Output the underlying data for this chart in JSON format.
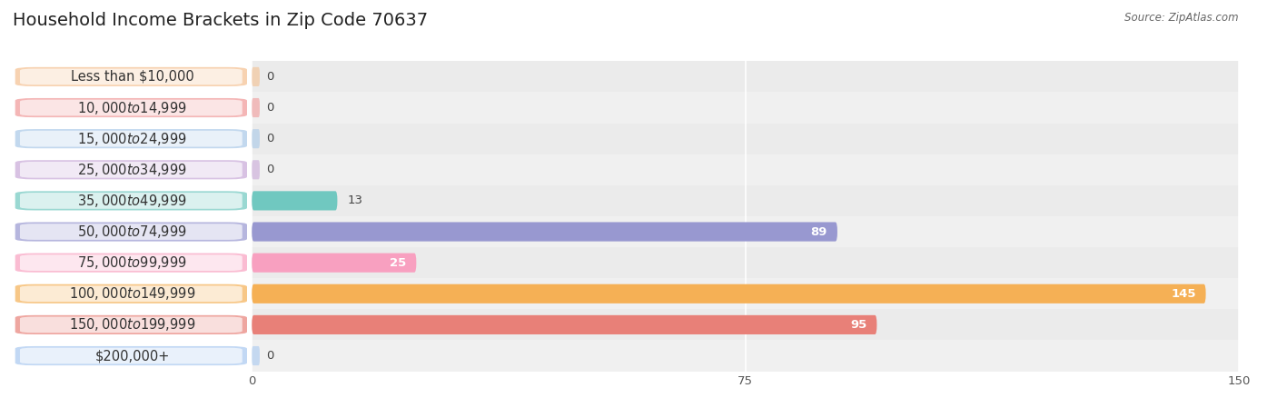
{
  "title": "Household Income Brackets in Zip Code 70637",
  "source": "Source: ZipAtlas.com",
  "categories": [
    "Less than $10,000",
    "$10,000 to $14,999",
    "$15,000 to $24,999",
    "$25,000 to $34,999",
    "$35,000 to $49,999",
    "$50,000 to $74,999",
    "$75,000 to $99,999",
    "$100,000 to $149,999",
    "$150,000 to $199,999",
    "$200,000+"
  ],
  "values": [
    0,
    0,
    0,
    0,
    13,
    89,
    25,
    145,
    95,
    0
  ],
  "bar_colors": [
    "#F5C090",
    "#F09898",
    "#A8C8E8",
    "#C8A8D8",
    "#70C8C0",
    "#9898D0",
    "#F8A0C0",
    "#F5B055",
    "#E88078",
    "#A8C8F0"
  ],
  "background_color": "#ffffff",
  "plot_bg_color": "#f0f0f0",
  "xlim": [
    0,
    150
  ],
  "xticks": [
    0,
    75,
    150
  ],
  "bar_height": 0.62,
  "label_fontsize": 10.5,
  "title_fontsize": 14,
  "value_label_fontsize": 9.5,
  "value_label_color_inside": "#ffffff",
  "value_label_color_outside": "#444444"
}
